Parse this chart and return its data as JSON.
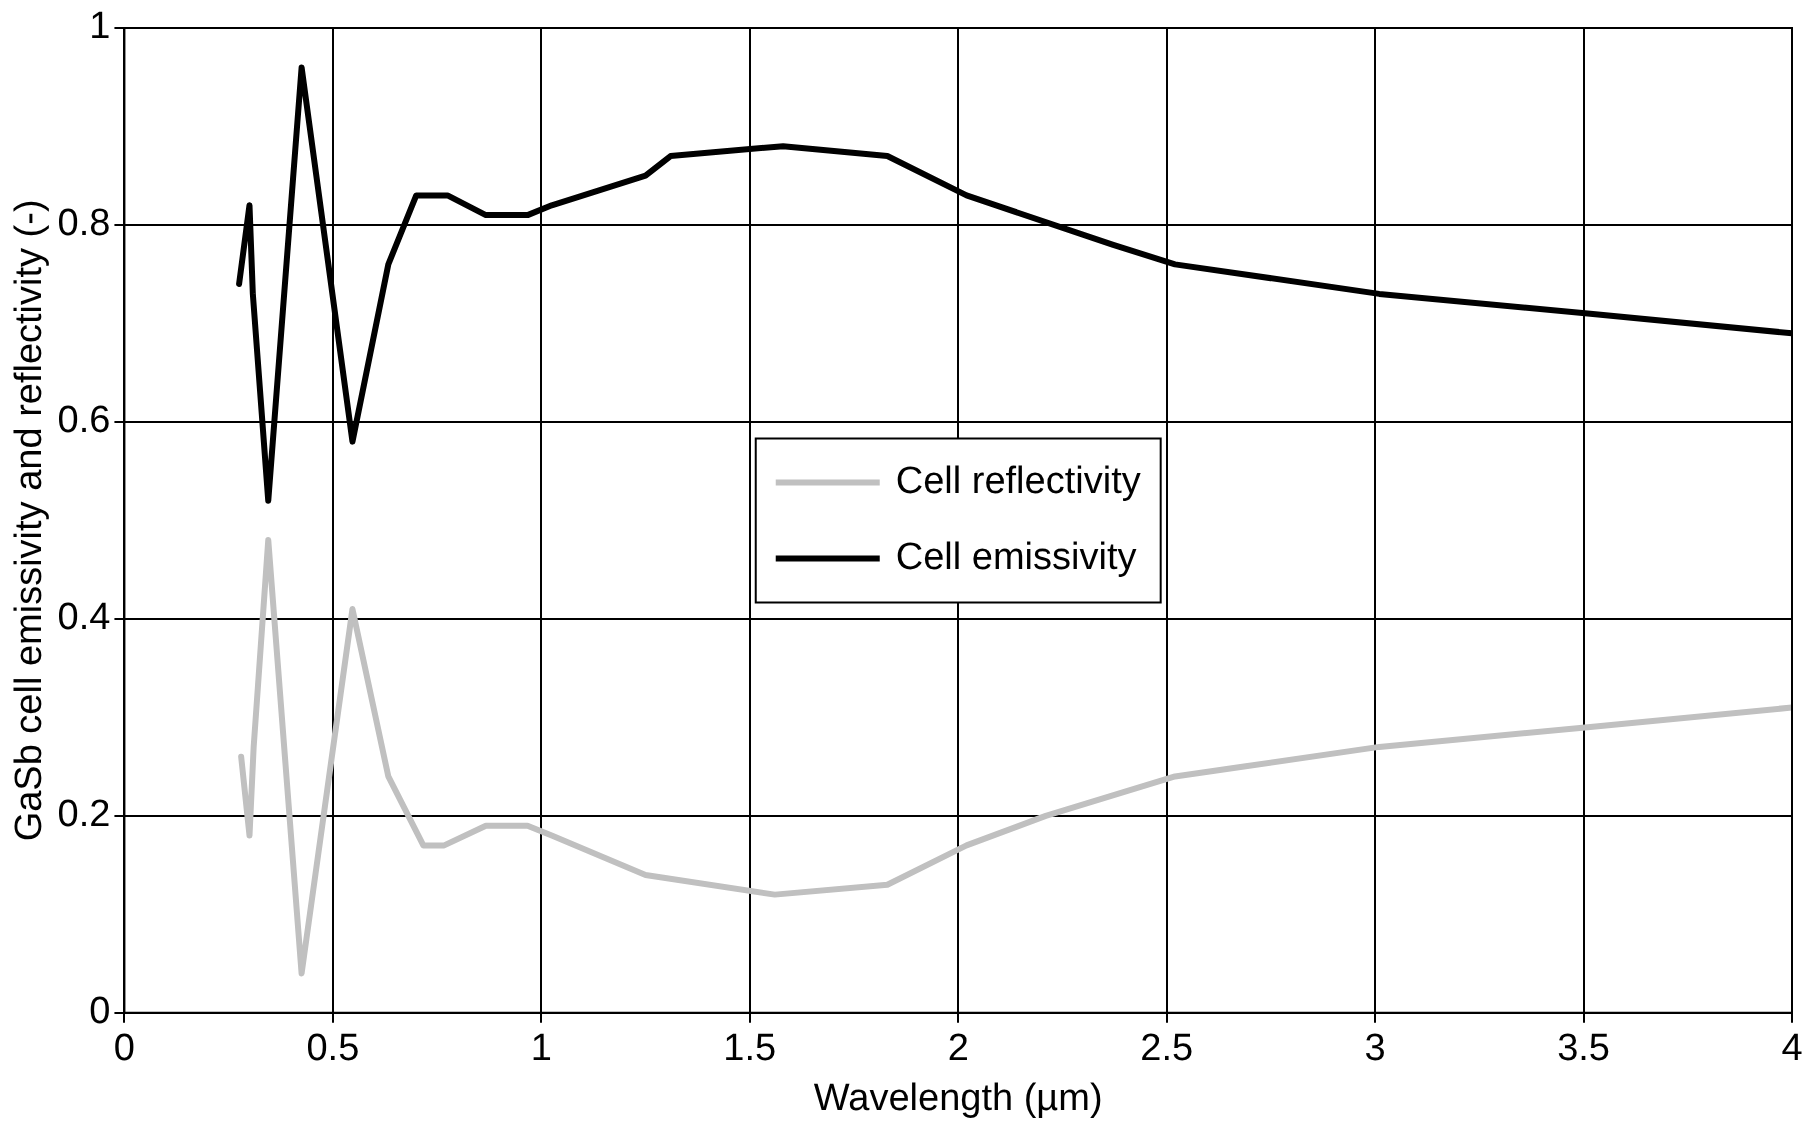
{
  "chart_data": {
    "type": "line",
    "xlabel": "Wavelength (µm)",
    "ylabel": "GaSb cell emissivity and reflectivity (-)",
    "xlim": [
      0,
      4
    ],
    "xticks": [
      0,
      0.5,
      1,
      1.5,
      2,
      2.5,
      3,
      3.5,
      4
    ],
    "ylim": [
      0,
      1
    ],
    "yticks": [
      0,
      0.2,
      0.4,
      0.6,
      0.8,
      1
    ],
    "grid": true,
    "legend": "center",
    "marker": "none",
    "line_style": "solid",
    "series": [
      {
        "name": "Cell reflectivity",
        "color": "#c0c0c0",
        "x": [
          0.28,
          0.3,
          0.31,
          0.345,
          0.425,
          0.547,
          0.633,
          0.717,
          0.767,
          0.867,
          0.967,
          1.025,
          1.25,
          1.56,
          1.83,
          2.02,
          2.21,
          2.52,
          3.01,
          3.51,
          4.0
        ],
        "values": [
          0.26,
          0.18,
          0.27,
          0.48,
          0.04,
          0.41,
          0.24,
          0.17,
          0.17,
          0.19,
          0.19,
          0.18,
          0.14,
          0.12,
          0.13,
          0.17,
          0.2,
          0.24,
          0.27,
          0.29,
          0.31
        ]
      },
      {
        "name": "Cell emissivity",
        "color": "#000000",
        "x": [
          0.275,
          0.3,
          0.308,
          0.345,
          0.425,
          0.547,
          0.633,
          0.7,
          0.775,
          0.867,
          0.967,
          1.025,
          1.25,
          1.31,
          1.58,
          1.83,
          2.02,
          2.37,
          2.52,
          3.01,
          3.51,
          4.0
        ],
        "values": [
          0.74,
          0.82,
          0.73,
          0.52,
          0.96,
          0.58,
          0.76,
          0.83,
          0.83,
          0.81,
          0.81,
          0.82,
          0.85,
          0.87,
          0.88,
          0.87,
          0.83,
          0.78,
          0.76,
          0.73,
          0.71,
          0.69
        ]
      }
    ]
  }
}
